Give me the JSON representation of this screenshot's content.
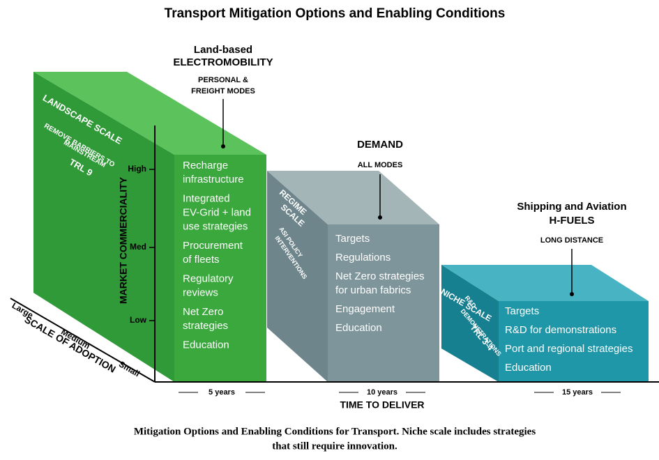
{
  "title": "Transport Mitigation Options and Enabling Conditions",
  "axes": {
    "y_label": "MARKET COMMERCIALITY",
    "y_ticks": [
      "High",
      "Med",
      "Low"
    ],
    "x_label": "TIME TO DELIVER",
    "depth_label": "SCALE OF ADOPTION",
    "depth_ticks": [
      "Large",
      "Medium",
      "Small"
    ]
  },
  "blocks": [
    {
      "heading": [
        "Land-based",
        "ELECTROMOBILITY"
      ],
      "sub": [
        "PERSONAL &",
        "FREIGHT MODES"
      ],
      "side": [
        "LANDSCAPE SCALE",
        "REMOVE BARRIERS TO",
        "MAINSTREAM",
        "TRL 9"
      ],
      "items": [
        [
          "Recharge",
          "infrastructure"
        ],
        [
          "Integrated",
          "EV-Grid + land",
          "use strategies"
        ],
        [
          "Procurement",
          "of fleets"
        ],
        [
          "Regulatory",
          "reviews"
        ],
        [
          "Net Zero",
          "strategies"
        ],
        [
          "Education"
        ]
      ],
      "duration": "5 years"
    },
    {
      "heading": [
        "DEMAND"
      ],
      "sub": [
        "ALL MODES"
      ],
      "side": [
        "REGIME",
        "SCALE",
        "ASI POLICY",
        "INTERVENTIONS"
      ],
      "items": [
        [
          "Targets"
        ],
        [
          "Regulations"
        ],
        [
          "Net Zero strategies",
          "for urban fabrics"
        ],
        [
          "Engagement"
        ],
        [
          "Education"
        ]
      ],
      "duration": "10 years"
    },
    {
      "heading": [
        "Shipping and Aviation",
        "H-FUELS"
      ],
      "sub": [
        "LONG DISTANCE"
      ],
      "side": [
        "NICHE SCALE",
        "R&D",
        "DEMONSTRATIONS",
        "TRL 3-4"
      ],
      "items": [
        [
          "Targets"
        ],
        [
          "R&D for demonstrations"
        ],
        [
          "Port and regional strategies"
        ],
        [
          "Education"
        ]
      ],
      "duration": "15 years"
    }
  ],
  "caption": [
    "Mitigation Options and Enabling Conditions for Transport. Niche scale includes strategies",
    "that still require innovation."
  ]
}
